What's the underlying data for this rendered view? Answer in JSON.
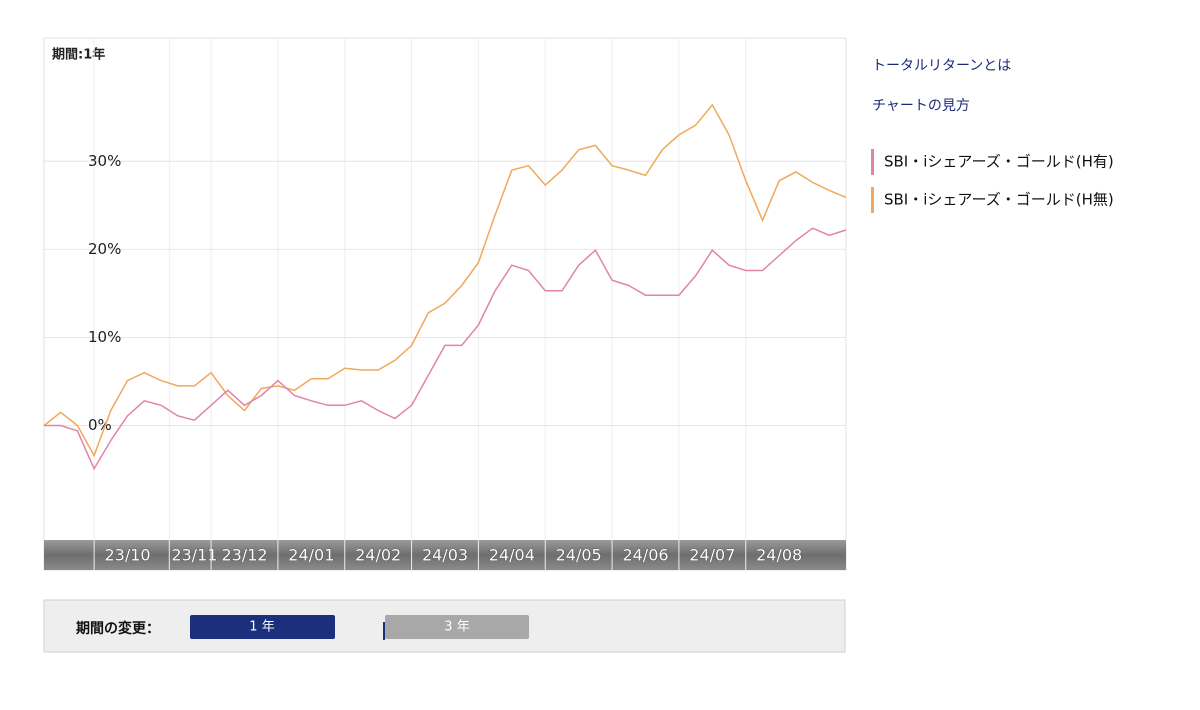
{
  "chart_data": {
    "type": "line",
    "period_label": "期間:1年",
    "categories": [
      null,
      null,
      null,
      null,
      null,
      "23/10",
      null,
      null,
      null,
      "23/11",
      null,
      null,
      "23/12",
      null,
      null,
      null,
      "24/01",
      null,
      null,
      null,
      "24/02",
      null,
      null,
      null,
      "24/03",
      null,
      null,
      null,
      "24/04",
      null,
      null,
      null,
      "24/05",
      null,
      null,
      null,
      "24/06",
      null,
      null,
      null,
      "24/07",
      null,
      null,
      null,
      "24/08",
      null,
      null,
      null,
      null
    ],
    "series": [
      {
        "name": "SBI・iシェアーズ・ゴールド(H有)",
        "color": "#e283ab",
        "values": [
          0,
          0,
          -0.6,
          -4.9,
          -1.7,
          1.1,
          2.8,
          2.3,
          1.1,
          0.6,
          2.3,
          4.0,
          2.3,
          3.4,
          5.1,
          3.4,
          2.8,
          2.3,
          2.3,
          2.8,
          1.7,
          0.8,
          2.3,
          5.7,
          9.1,
          9.1,
          11.4,
          15.3,
          18.2,
          17.6,
          15.3,
          15.3,
          18.2,
          19.9,
          16.5,
          15.9,
          14.8,
          14.8,
          14.8,
          17.0,
          19.9,
          18.2,
          17.6,
          17.6,
          19.3,
          21.0,
          22.4,
          21.6,
          22.2
        ]
      },
      {
        "name": "SBI・iシェアーズ・ゴールド(H無)",
        "color": "#f0a95a",
        "values": [
          0,
          1.5,
          0,
          -3.4,
          1.7,
          5.1,
          6.0,
          5.1,
          4.5,
          4.5,
          6.0,
          3.4,
          1.7,
          4.2,
          4.5,
          4.0,
          5.3,
          5.3,
          6.5,
          6.3,
          6.3,
          7.4,
          9.1,
          12.8,
          13.9,
          15.9,
          18.5,
          23.9,
          29.0,
          29.5,
          27.3,
          29.0,
          31.3,
          31.8,
          29.5,
          29.0,
          28.4,
          31.3,
          33.0,
          34.1,
          36.4,
          33.0,
          27.8,
          23.3,
          27.8,
          28.8,
          27.6,
          26.7,
          25.9
        ]
      }
    ],
    "ylim": [
      -13,
      44
    ],
    "yticks": [
      {
        "value": 0,
        "label": "0%"
      },
      {
        "value": 10,
        "label": "10%"
      },
      {
        "value": 20,
        "label": "20%"
      },
      {
        "value": 30,
        "label": "30%"
      }
    ],
    "grid": true
  },
  "links": [
    "トータルリターンとは",
    "チャートの見方"
  ],
  "period_panel": {
    "label": "期間の変更：",
    "buttons": [
      "1 年",
      "3 年"
    ]
  }
}
